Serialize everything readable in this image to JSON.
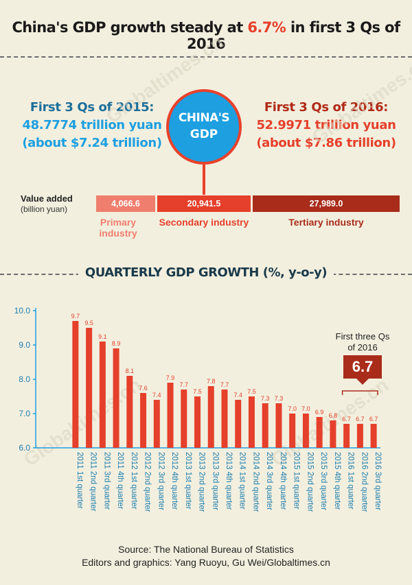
{
  "title": {
    "pre": "China's GDP growth steady at ",
    "highlight": "6.7%",
    "post": " in first 3 Qs of 2016"
  },
  "center_badge": {
    "line1": "CHINA'S",
    "line2": "GDP"
  },
  "left_block": {
    "heading": "First 3 Qs of 2015:",
    "value": "48.7774 trillion yuan",
    "usd": "(about $7.24 trillion)"
  },
  "right_block": {
    "heading": "First 3 Qs of 2016:",
    "value": "52.9971 trillion yuan",
    "usd": "(about $7.86 trillion)"
  },
  "value_added": {
    "label": "Value added",
    "unit": "(billion yuan)",
    "segments": [
      {
        "value": "4,066.6",
        "name": "Primary industry",
        "color": "#f07e6e"
      },
      {
        "value": "20,941.5",
        "name": "Secondary industry",
        "color": "#e5402b"
      },
      {
        "value": "27,989.0",
        "name": "Tertiary industry",
        "color": "#a92c1b"
      }
    ]
  },
  "section_title": "QUARTERLY GDP GROWTH (%, y-o-y)",
  "annotation": {
    "text": "First three Qs of 2016",
    "value": "6.7"
  },
  "footer": {
    "source": "Source:  The National Bureau of Statistics",
    "credits": "Editors and graphics: Yang Ruoyu, Gu Wei/Globaltimes.cn"
  },
  "watermark": "Globaltimes.cn",
  "chart_data": {
    "type": "bar",
    "title": "QUARTERLY GDP GROWTH (%, y-o-y)",
    "xlabel": "",
    "ylabel": "",
    "ylim": [
      6.0,
      10.0
    ],
    "yticks": [
      "10.0",
      "9.0",
      "8.0",
      "7.0",
      "6.0"
    ],
    "categories": [
      "2011 1st quarter",
      "2011 2nd quarter",
      "2011 3rd quarter",
      "2011 4th quarter",
      "2012 1st quarter",
      "2012 2nd quarter",
      "2012 3rd quarter",
      "2012 4th quarter",
      "2013 1st quarter",
      "2013 2nd quarter",
      "2013 3rd quarter",
      "2013 4th quarter",
      "2014 1st quarter",
      "2014 2nd quarter",
      "2014 3rd quarter",
      "2014 4th quarter",
      "2015 1st quarter",
      "2015 2nd quarter",
      "2015 3rd quarter",
      "2015 4th quarter",
      "2016 1st quarter",
      "2016 2nd quarter",
      "2016 3rd quarter"
    ],
    "values": [
      9.7,
      9.5,
      9.1,
      8.9,
      8.1,
      7.6,
      7.4,
      7.9,
      7.7,
      7.5,
      7.8,
      7.7,
      7.4,
      7.5,
      7.3,
      7.3,
      7.0,
      7.0,
      6.9,
      6.8,
      6.7,
      6.7,
      6.7
    ],
    "grid": false,
    "bar_color": "#e5402b",
    "axis_color": "#1d9fe0"
  }
}
